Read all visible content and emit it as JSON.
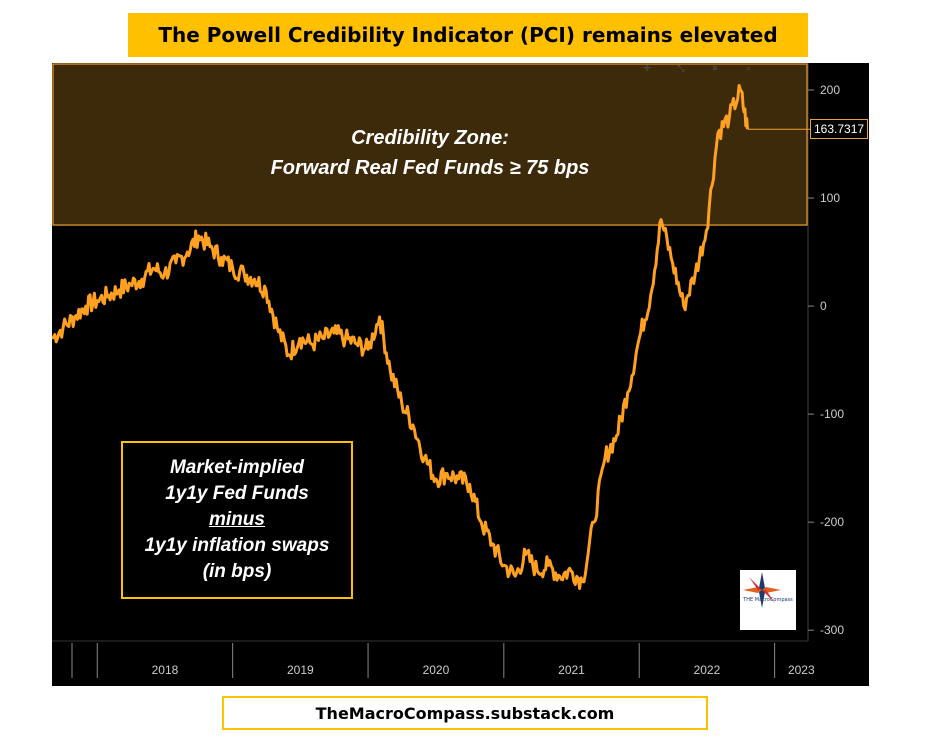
{
  "title": "The Powell Credibility Indicator (PCI) remains elevated",
  "source": "TheMacroCompass.substack.com",
  "zone": {
    "line1": "Credibility Zone:",
    "line2": "Forward Real Fed Funds ≥ 75 bps",
    "threshold": 75
  },
  "definition": {
    "line1": "Market-implied",
    "line2": "1y1y Fed Funds",
    "line3": "minus",
    "line4": "1y1y inflation swaps",
    "line5": "(in bps)"
  },
  "logo": {
    "text": "THE MacroCompass"
  },
  "toolbar_icons": [
    "move-icon",
    "zoom-icon",
    "lines-icon",
    "magnifier-icon"
  ],
  "colors": {
    "series": "#ffa020",
    "zone_fill": "#3d2a0a",
    "zone_border": "#f0a030",
    "banner": "#ffc000"
  },
  "chart_data": {
    "type": "line",
    "series": [
      {
        "name": "",
        "last_value_label": "163.7317",
        "points": [
          [
            "2017-09-01",
            -30
          ],
          [
            "2017-10-01",
            -20
          ],
          [
            "2017-11-01",
            -10
          ],
          [
            "2017-12-01",
            0
          ],
          [
            "2018-01-01",
            5
          ],
          [
            "2018-02-01",
            10
          ],
          [
            "2018-03-01",
            15
          ],
          [
            "2018-04-01",
            20
          ],
          [
            "2018-05-01",
            25
          ],
          [
            "2018-06-01",
            35
          ],
          [
            "2018-07-01",
            30
          ],
          [
            "2018-08-01",
            40
          ],
          [
            "2018-09-01",
            50
          ],
          [
            "2018-10-01",
            65
          ],
          [
            "2018-11-01",
            55
          ],
          [
            "2018-12-01",
            45
          ],
          [
            "2019-01-01",
            35
          ],
          [
            "2019-02-01",
            30
          ],
          [
            "2019-03-01",
            25
          ],
          [
            "2019-04-01",
            15
          ],
          [
            "2019-05-01",
            -20
          ],
          [
            "2019-06-01",
            -45
          ],
          [
            "2019-07-01",
            -30
          ],
          [
            "2019-08-01",
            -35
          ],
          [
            "2019-09-01",
            -30
          ],
          [
            "2019-10-01",
            -25
          ],
          [
            "2019-11-01",
            -30
          ],
          [
            "2019-12-01",
            -35
          ],
          [
            "2020-01-01",
            -40
          ],
          [
            "2020-02-01",
            -10
          ],
          [
            "2020-03-01",
            -60
          ],
          [
            "2020-04-01",
            -90
          ],
          [
            "2020-05-01",
            -110
          ],
          [
            "2020-06-01",
            -140
          ],
          [
            "2020-07-01",
            -160
          ],
          [
            "2020-08-01",
            -155
          ],
          [
            "2020-09-01",
            -160
          ],
          [
            "2020-10-01",
            -165
          ],
          [
            "2020-11-01",
            -200
          ],
          [
            "2020-12-01",
            -220
          ],
          [
            "2021-01-01",
            -240
          ],
          [
            "2021-02-01",
            -250
          ],
          [
            "2021-03-01",
            -230
          ],
          [
            "2021-04-01",
            -245
          ],
          [
            "2021-05-01",
            -240
          ],
          [
            "2021-06-01",
            -250
          ],
          [
            "2021-07-01",
            -245
          ],
          [
            "2021-08-01",
            -255
          ],
          [
            "2021-09-01",
            -200
          ],
          [
            "2021-10-01",
            -140
          ],
          [
            "2021-11-01",
            -120
          ],
          [
            "2021-12-01",
            -80
          ],
          [
            "2022-01-01",
            -30
          ],
          [
            "2022-02-01",
            10
          ],
          [
            "2022-03-01",
            80
          ],
          [
            "2022-04-01",
            40
          ],
          [
            "2022-05-01",
            0
          ],
          [
            "2022-06-01",
            30
          ],
          [
            "2022-07-01",
            70
          ],
          [
            "2022-08-01",
            160
          ],
          [
            "2022-09-01",
            175
          ],
          [
            "2022-10-01",
            200
          ],
          [
            "2022-10-20",
            163.7317
          ]
        ]
      }
    ],
    "x_ticks": [
      "2018",
      "2019",
      "2020",
      "2021",
      "2022",
      "2023"
    ],
    "y_ticks": [
      200,
      100,
      0,
      -100,
      -200,
      -300
    ],
    "ylim": [
      -310,
      225
    ],
    "xlim": [
      "2017-09-01",
      "2023-04-01"
    ],
    "zone": {
      "from": 75,
      "to": 225
    },
    "grid": false,
    "y_axis_side": "right"
  }
}
